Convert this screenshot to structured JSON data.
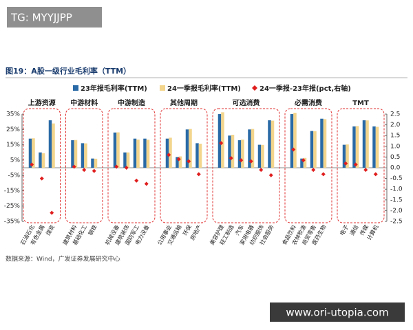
{
  "watermarks": [
    "TG: MYYJJPP",
    "www.ori-utopia.com"
  ],
  "chart_data": {
    "type": "bar",
    "title": "图19：A股一级行业毛利率（TTM）",
    "source": "数据来源：Wind，广发证券发展研究中心",
    "groups": [
      {
        "name": "上游资源",
        "categories": [
          "石油石化",
          "有色金属",
          "煤炭"
        ]
      },
      {
        "name": "中游材料",
        "categories": [
          "建筑材料",
          "基础化工",
          "钢铁"
        ]
      },
      {
        "name": "中游制造",
        "categories": [
          "机械设备",
          "建筑装饰",
          "国防军工",
          "电力设备"
        ]
      },
      {
        "name": "其他周期",
        "categories": [
          "公用事业",
          "交通运输",
          "环保",
          "房地产"
        ]
      },
      {
        "name": "可选消费",
        "categories": [
          "美容护理",
          "轻工制造",
          "汽车",
          "家用电器",
          "纺织服饰",
          "社会服务"
        ]
      },
      {
        "name": "必需消费",
        "categories": [
          "食品饮料",
          "农林牧渔",
          "商贸零售",
          "医药生物"
        ]
      },
      {
        "name": "TMT",
        "categories": [
          "电子",
          "通信",
          "传媒",
          "计算机"
        ]
      }
    ],
    "series": [
      {
        "name": "23年报毛利率(TTM)",
        "color": "#2a6aa6",
        "values": [
          19,
          10,
          31,
          18,
          16,
          6,
          23,
          10,
          19,
          19,
          19,
          7,
          25,
          16,
          35,
          21,
          18,
          25,
          15,
          31,
          35,
          6,
          24,
          32,
          15,
          27,
          31,
          27
        ]
      },
      {
        "name": "24一季报毛利率(TTM)",
        "color": "#f3d58c",
        "values": [
          19.2,
          9.5,
          28.9,
          18.1,
          15.9,
          5.9,
          23.1,
          10,
          18.4,
          18.3,
          19.6,
          7.4,
          25.3,
          15.7,
          36.2,
          21.5,
          18.4,
          25.3,
          14.9,
          30.7,
          35.9,
          6.4,
          23.9,
          31.7,
          15.2,
          27.2,
          30.9,
          26.7
        ]
      },
      {
        "name": "24一季报-23年报(pct,右轴)",
        "color": "#e01e1e",
        "axis": "y2",
        "values": [
          0.15,
          -0.5,
          -2.1,
          0.05,
          -0.1,
          -0.15,
          0.05,
          0,
          -0.6,
          -0.75,
          0.6,
          0.4,
          0.3,
          -0.3,
          1.15,
          0.45,
          0.35,
          0.3,
          -0.1,
          -0.35,
          0.85,
          0.35,
          -0.1,
          -0.3,
          0.2,
          0.15,
          -0.1,
          -0.3
        ]
      }
    ],
    "ylim": [
      -35,
      35
    ],
    "yticks": [
      {
        "value": 35,
        "label": "35%"
      },
      {
        "value": 25,
        "label": "25%"
      },
      {
        "value": 15,
        "label": "15%"
      },
      {
        "value": 5,
        "label": "5%"
      },
      {
        "value": -5,
        "label": "-5%"
      },
      {
        "value": -15,
        "label": "-15%"
      },
      {
        "value": -25,
        "label": "-25%"
      },
      {
        "value": -35,
        "label": "-35%"
      }
    ],
    "y2lim": [
      -2.5,
      2.5
    ],
    "y2ticks": [
      2.5,
      {
        "value": 2,
        "label": "2.0"
      },
      1.5,
      {
        "value": 1,
        "label": "1.0"
      },
      0.5,
      {
        "value": 0,
        "label": "0.0"
      },
      -0.5,
      {
        "value": -1,
        "label": "-1.0"
      },
      -1.5,
      {
        "value": -2,
        "label": "-2.0"
      },
      -2.5
    ]
  }
}
